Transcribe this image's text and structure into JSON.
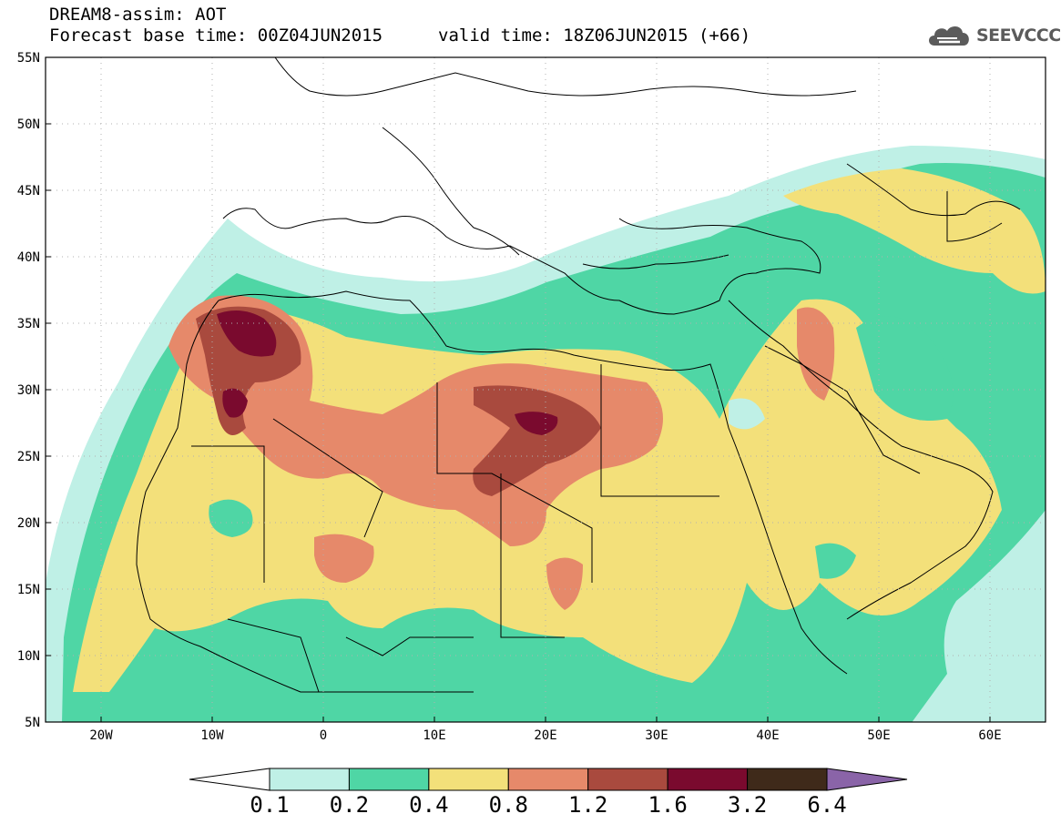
{
  "header": {
    "title_line1": "DREAM8-assim: AOT",
    "base_time": "Forecast base time: 00Z04JUN2015",
    "valid_time": "valid time: 18Z06JUN2015 (+66)"
  },
  "logo": {
    "text": "SEEVCCC",
    "icon": "cloud-icon"
  },
  "map": {
    "lon_range": [
      -25,
      65
    ],
    "lat_range": [
      5,
      55
    ],
    "lat_ticks": [
      "55N",
      "50N",
      "45N",
      "40N",
      "35N",
      "30N",
      "25N",
      "20N",
      "15N",
      "10N",
      "5N"
    ],
    "lon_ticks": [
      "20W",
      "10W",
      "0",
      "10E",
      "20E",
      "30E",
      "40E",
      "50E",
      "60E"
    ],
    "grid": "dotted",
    "field": "aerosol optical thickness (dust)"
  },
  "colorbar": {
    "labels": [
      "0.1",
      "0.2",
      "0.4",
      "0.8",
      "1.2",
      "1.6",
      "3.2",
      "6.4"
    ],
    "colors": [
      "#ffffff",
      "#bff0e6",
      "#4fd6a5",
      "#f3e07a",
      "#e6896a",
      "#a94a3e",
      "#7a0a2e",
      "#3f2a1a",
      "#8a64a8"
    ]
  }
}
